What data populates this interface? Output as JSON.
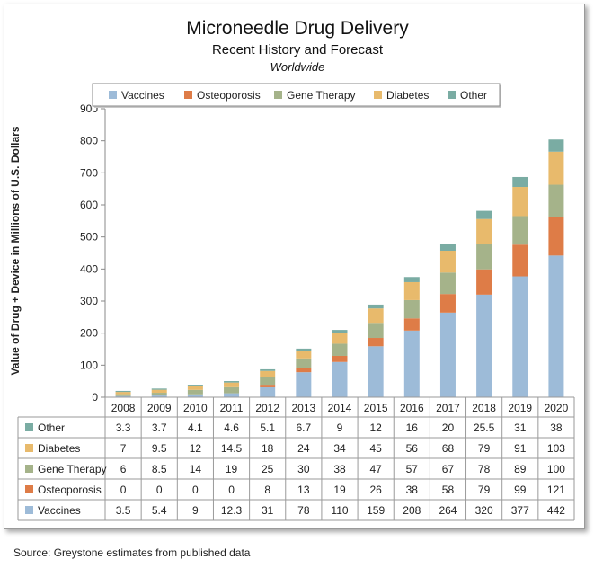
{
  "chart_data": {
    "type": "bar",
    "stacked": true,
    "title": "Microneedle Drug Delivery",
    "subtitle": "Recent History and Forecast",
    "region": "Worldwide",
    "ylabel": "Value of Drug + Device in Millions of U.S. Dollars",
    "xlabel": "",
    "ylim": [
      0,
      900
    ],
    "yticks": [
      0,
      100,
      200,
      300,
      400,
      500,
      600,
      700,
      800,
      900
    ],
    "grid": false,
    "legend_position": "top",
    "categories": [
      "2008",
      "2009",
      "2010",
      "2011",
      "2012",
      "2013",
      "2014",
      "2015",
      "2016",
      "2017",
      "2018",
      "2019",
      "2020"
    ],
    "series": [
      {
        "name": "Vaccines",
        "color": "#9dbbd8",
        "values": [
          "3.5",
          "5.4",
          "9",
          "12.3",
          "31",
          "78",
          "110",
          "159",
          "208",
          "264",
          "320",
          "377",
          "442"
        ]
      },
      {
        "name": "Osteoporosis",
        "color": "#de7c47",
        "values": [
          "0",
          "0",
          "0",
          "0",
          "8",
          "13",
          "19",
          "26",
          "38",
          "58",
          "79",
          "99",
          "121"
        ]
      },
      {
        "name": "Gene Therapy",
        "color": "#a5b38a",
        "values": [
          "6",
          "8.5",
          "14",
          "19",
          "25",
          "30",
          "38",
          "47",
          "57",
          "67",
          "78",
          "89",
          "100"
        ]
      },
      {
        "name": "Diabetes",
        "color": "#e8ba6c",
        "values": [
          "7",
          "9.5",
          "12",
          "14.5",
          "18",
          "24",
          "34",
          "45",
          "56",
          "68",
          "79",
          "91",
          "103"
        ]
      },
      {
        "name": "Other",
        "color": "#7aaca3",
        "values": [
          "3.3",
          "3.7",
          "4.1",
          "4.6",
          "5.1",
          "6.7",
          "9",
          "12",
          "16",
          "20",
          "25.5",
          "31",
          "38"
        ]
      }
    ]
  },
  "source": "Source: Greystone estimates from published data"
}
